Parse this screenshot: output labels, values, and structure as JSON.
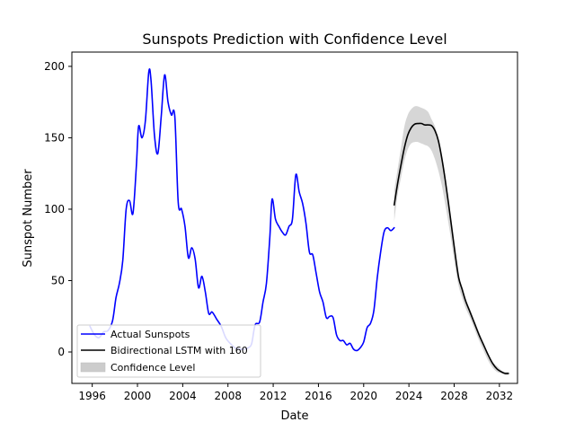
{
  "chart_data": {
    "type": "line",
    "title": "Sunspots Prediction with Confidence Level",
    "xlabel": "Date",
    "ylabel": "Sunspot Number",
    "xlim": [
      1994.2,
      2033.6
    ],
    "ylim": [
      -22,
      210
    ],
    "x_ticks": [
      1996,
      2000,
      2004,
      2008,
      2012,
      2016,
      2020,
      2024,
      2028,
      2032
    ],
    "y_ticks": [
      0,
      50,
      100,
      150,
      200
    ],
    "grid": false,
    "legend_position": "lower-left",
    "series": [
      {
        "name": "Actual Sunspots",
        "kind": "line",
        "color": "#0000ff",
        "x": [
          1995.8,
          1996.2,
          1996.6,
          1997.0,
          1997.4,
          1997.8,
          1998.1,
          1998.4,
          1998.7,
          1999.0,
          1999.3,
          1999.6,
          1999.9,
          2000.1,
          2000.4,
          2000.7,
          2001.0,
          2001.2,
          2001.5,
          2001.8,
          2002.1,
          2002.4,
          2002.7,
          2003.0,
          2003.3,
          2003.6,
          2003.9,
          2004.2,
          2004.5,
          2004.8,
          2005.1,
          2005.4,
          2005.7,
          2006.0,
          2006.3,
          2006.6,
          2007.0,
          2007.4,
          2007.8,
          2008.2,
          2008.6,
          2009.0,
          2009.4,
          2009.8,
          2010.1,
          2010.4,
          2010.8,
          2011.1,
          2011.4,
          2011.7,
          2011.9,
          2012.2,
          2012.5,
          2012.8,
          2013.1,
          2013.4,
          2013.7,
          2014.0,
          2014.3,
          2014.6,
          2014.9,
          2015.2,
          2015.5,
          2015.8,
          2016.1,
          2016.4,
          2016.7,
          2017.0,
          2017.3,
          2017.6,
          2017.9,
          2018.2,
          2018.5,
          2018.8,
          2019.1,
          2019.4,
          2019.7,
          2020.0,
          2020.3,
          2020.6,
          2020.9,
          2021.2,
          2021.5,
          2021.8,
          2022.1,
          2022.4,
          2022.7
        ],
        "values": [
          18,
          12,
          10,
          14,
          15,
          22,
          38,
          48,
          64,
          100,
          106,
          97,
          130,
          158,
          150,
          162,
          196,
          190,
          152,
          139,
          165,
          194,
          175,
          166,
          165,
          105,
          100,
          88,
          66,
          73,
          65,
          45,
          53,
          42,
          27,
          28,
          23,
          18,
          10,
          6,
          3,
          2,
          2,
          3,
          6,
          19,
          21,
          35,
          48,
          80,
          107,
          93,
          88,
          84,
          82,
          88,
          93,
          124,
          112,
          104,
          90,
          70,
          68,
          55,
          42,
          35,
          24,
          25,
          24,
          12,
          8,
          8,
          5,
          6,
          2,
          1,
          3,
          7,
          17,
          20,
          29,
          52,
          70,
          84,
          87,
          85,
          87
        ]
      },
      {
        "name": "Bidirectional LSTM with 160",
        "kind": "line",
        "color": "#000000",
        "x": [
          2022.7,
          2023.0,
          2023.3,
          2023.6,
          2023.9,
          2024.2,
          2024.5,
          2024.8,
          2025.1,
          2025.4,
          2025.7,
          2026.0,
          2026.3,
          2026.6,
          2026.9,
          2027.2,
          2027.5,
          2027.8,
          2028.1,
          2028.4,
          2028.7,
          2029.0,
          2029.4,
          2029.8,
          2030.2,
          2030.6,
          2031.0,
          2031.4,
          2031.8,
          2032.2,
          2032.5,
          2032.8
        ],
        "values": [
          103,
          118,
          131,
          143,
          152,
          157,
          159.5,
          160,
          160,
          159,
          159,
          158.5,
          155,
          148,
          136,
          121,
          104,
          86,
          68,
          52,
          44,
          36,
          28,
          20,
          12,
          5,
          -2,
          -8,
          -12,
          -14,
          -15,
          -15
        ]
      },
      {
        "name": "Confidence Level",
        "kind": "band",
        "color": "#cccccc",
        "x": [
          2022.7,
          2023.0,
          2023.3,
          2023.6,
          2023.9,
          2024.2,
          2024.5,
          2024.8,
          2025.1,
          2025.4,
          2025.7,
          2026.0,
          2026.3,
          2026.6,
          2026.9,
          2027.2,
          2027.5,
          2027.8,
          2028.1,
          2028.4,
          2028.7,
          2029.0,
          2029.4,
          2029.8,
          2030.2,
          2030.6,
          2031.0,
          2031.4,
          2031.8,
          2032.2,
          2032.5,
          2032.8
        ],
        "lower": [
          91,
          110,
          122,
          134,
          142,
          146,
          147,
          147,
          146,
          145,
          144,
          141,
          135,
          127,
          117,
          104,
          90,
          75,
          59,
          46,
          38,
          31,
          24,
          16,
          8,
          1,
          -6,
          -11,
          -14,
          -15,
          -16,
          -16
        ],
        "upper": [
          113,
          128,
          143,
          158,
          166,
          170,
          172,
          172,
          171,
          170,
          168,
          163,
          158,
          150,
          138,
          123,
          106,
          88,
          70,
          54,
          46,
          38,
          30,
          22,
          14,
          6,
          -1,
          -7,
          -10,
          -13,
          -14,
          -14
        ]
      }
    ]
  }
}
